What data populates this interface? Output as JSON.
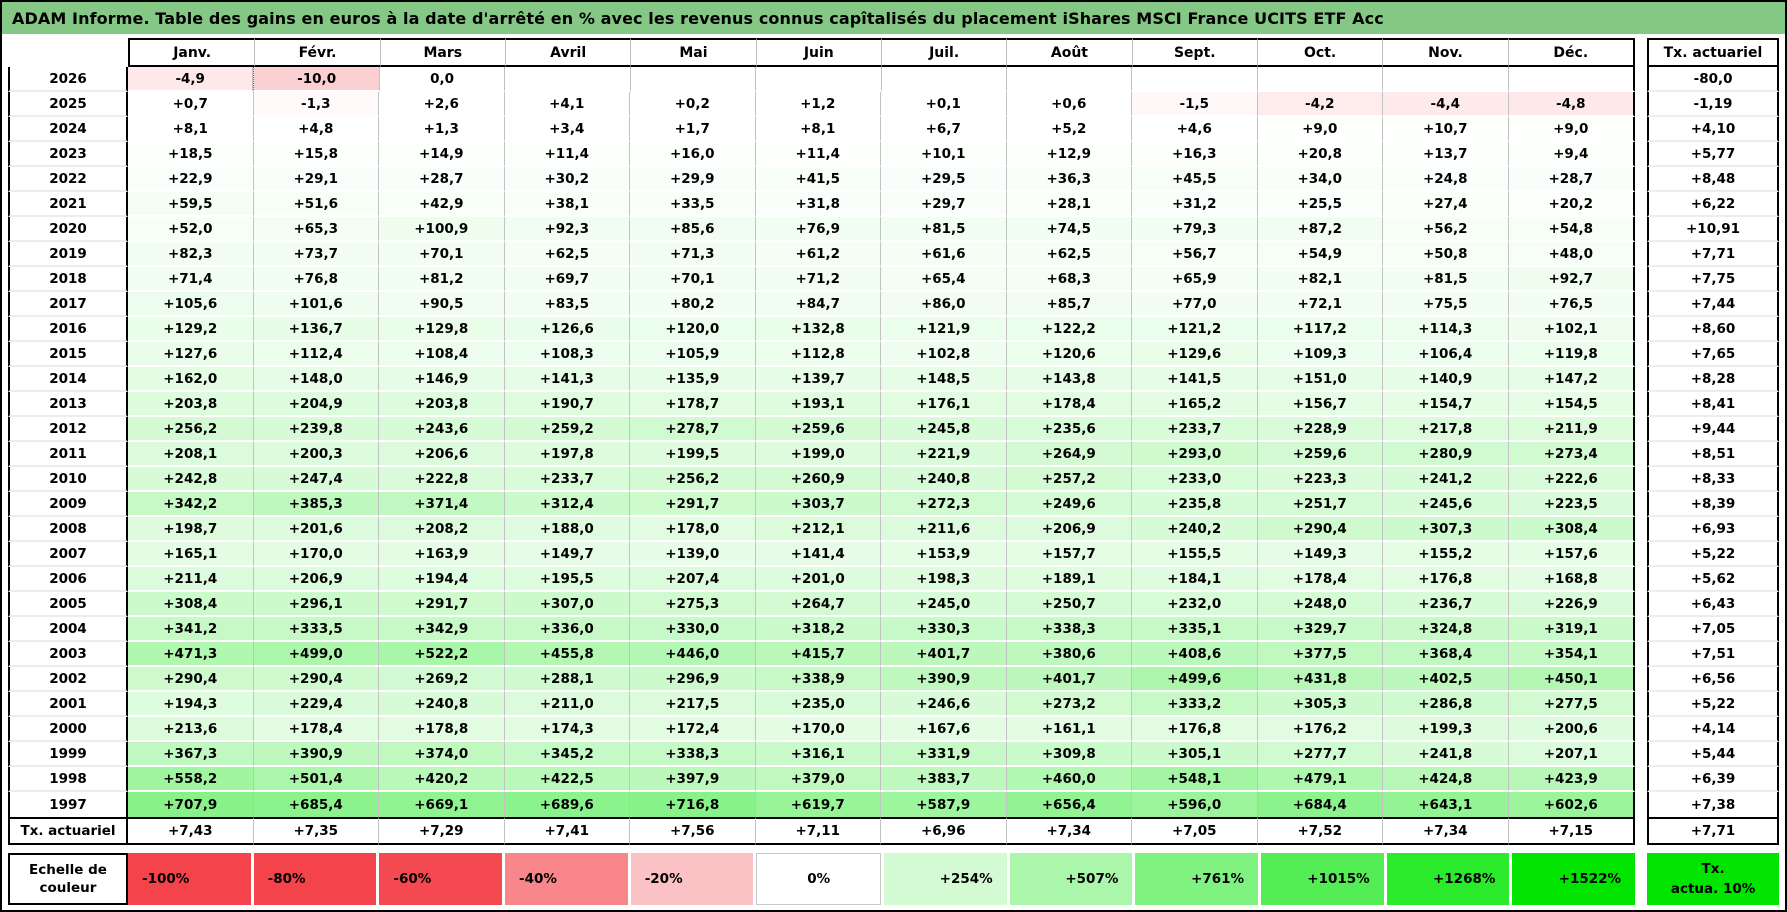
{
  "chart_data": {
    "type": "heatmap",
    "title": "ADAM Informe. Table des gains en euros à la date d'arrêté en % avec les revenus connus capîtalisés du placement iShares MSCI France UCITS ETF Acc",
    "columns": [
      "Janv.",
      "Févr.",
      "Mars",
      "Avril",
      "Mai",
      "Juin",
      "Juil.",
      "Août",
      "Sept.",
      "Oct.",
      "Nov.",
      "Déc."
    ],
    "rows": [
      "2026",
      "2025",
      "2024",
      "2023",
      "2022",
      "2021",
      "2020",
      "2019",
      "2018",
      "2017",
      "2016",
      "2015",
      "2014",
      "2013",
      "2012",
      "2011",
      "2010",
      "2009",
      "2008",
      "2007",
      "2006",
      "2005",
      "2004",
      "2003",
      "2002",
      "2001",
      "2000",
      "1999",
      "1998",
      "1997"
    ],
    "cells": [
      [
        "-4,9",
        "-10,0",
        "0,0",
        "",
        "",
        "",
        "",
        "",
        "",
        "",
        "",
        ""
      ],
      [
        "+0,7",
        "-1,3",
        "+2,6",
        "+4,1",
        "+0,2",
        "+1,2",
        "+0,1",
        "+0,6",
        "-1,5",
        "-4,2",
        "-4,4",
        "-4,8"
      ],
      [
        "+8,1",
        "+4,8",
        "+1,3",
        "+3,4",
        "+1,7",
        "+8,1",
        "+6,7",
        "+5,2",
        "+4,6",
        "+9,0",
        "+10,7",
        "+9,0"
      ],
      [
        "+18,5",
        "+15,8",
        "+14,9",
        "+11,4",
        "+16,0",
        "+11,4",
        "+10,1",
        "+12,9",
        "+16,3",
        "+20,8",
        "+13,7",
        "+9,4"
      ],
      [
        "+22,9",
        "+29,1",
        "+28,7",
        "+30,2",
        "+29,9",
        "+41,5",
        "+29,5",
        "+36,3",
        "+45,5",
        "+34,0",
        "+24,8",
        "+28,7"
      ],
      [
        "+59,5",
        "+51,6",
        "+42,9",
        "+38,1",
        "+33,5",
        "+31,8",
        "+29,7",
        "+28,1",
        "+31,2",
        "+25,5",
        "+27,4",
        "+20,2"
      ],
      [
        "+52,0",
        "+65,3",
        "+100,9",
        "+92,3",
        "+85,6",
        "+76,9",
        "+81,5",
        "+74,5",
        "+79,3",
        "+87,2",
        "+56,2",
        "+54,8"
      ],
      [
        "+82,3",
        "+73,7",
        "+70,1",
        "+62,5",
        "+71,3",
        "+61,2",
        "+61,6",
        "+62,5",
        "+56,7",
        "+54,9",
        "+50,8",
        "+48,0"
      ],
      [
        "+71,4",
        "+76,8",
        "+81,2",
        "+69,7",
        "+70,1",
        "+71,2",
        "+65,4",
        "+68,3",
        "+65,9",
        "+82,1",
        "+81,5",
        "+92,7"
      ],
      [
        "+105,6",
        "+101,6",
        "+90,5",
        "+83,5",
        "+80,2",
        "+84,7",
        "+86,0",
        "+85,7",
        "+77,0",
        "+72,1",
        "+75,5",
        "+76,5"
      ],
      [
        "+129,2",
        "+136,7",
        "+129,8",
        "+126,6",
        "+120,0",
        "+132,8",
        "+121,9",
        "+122,2",
        "+121,2",
        "+117,2",
        "+114,3",
        "+102,1"
      ],
      [
        "+127,6",
        "+112,4",
        "+108,4",
        "+108,3",
        "+105,9",
        "+112,8",
        "+102,8",
        "+120,6",
        "+129,6",
        "+109,3",
        "+106,4",
        "+119,8"
      ],
      [
        "+162,0",
        "+148,0",
        "+146,9",
        "+141,3",
        "+135,9",
        "+139,7",
        "+148,5",
        "+143,8",
        "+141,5",
        "+151,0",
        "+140,9",
        "+147,2"
      ],
      [
        "+203,8",
        "+204,9",
        "+203,8",
        "+190,7",
        "+178,7",
        "+193,1",
        "+176,1",
        "+178,4",
        "+165,2",
        "+156,7",
        "+154,7",
        "+154,5"
      ],
      [
        "+256,2",
        "+239,8",
        "+243,6",
        "+259,2",
        "+278,7",
        "+259,6",
        "+245,8",
        "+235,6",
        "+233,7",
        "+228,9",
        "+217,8",
        "+211,9"
      ],
      [
        "+208,1",
        "+200,3",
        "+206,6",
        "+197,8",
        "+199,5",
        "+199,0",
        "+221,9",
        "+264,9",
        "+293,0",
        "+259,6",
        "+280,9",
        "+273,4"
      ],
      [
        "+242,8",
        "+247,4",
        "+222,8",
        "+233,7",
        "+256,2",
        "+260,9",
        "+240,8",
        "+257,2",
        "+233,0",
        "+223,3",
        "+241,2",
        "+222,6"
      ],
      [
        "+342,2",
        "+385,3",
        "+371,4",
        "+312,4",
        "+291,7",
        "+303,7",
        "+272,3",
        "+249,6",
        "+235,8",
        "+251,7",
        "+245,6",
        "+223,5"
      ],
      [
        "+198,7",
        "+201,6",
        "+208,2",
        "+188,0",
        "+178,0",
        "+212,1",
        "+211,6",
        "+206,9",
        "+240,2",
        "+290,4",
        "+307,3",
        "+308,4"
      ],
      [
        "+165,1",
        "+170,0",
        "+163,9",
        "+149,7",
        "+139,0",
        "+141,4",
        "+153,9",
        "+157,7",
        "+155,5",
        "+149,3",
        "+155,2",
        "+157,6"
      ],
      [
        "+211,4",
        "+206,9",
        "+194,4",
        "+195,5",
        "+207,4",
        "+201,0",
        "+198,3",
        "+189,1",
        "+184,1",
        "+178,4",
        "+176,8",
        "+168,8"
      ],
      [
        "+308,4",
        "+296,1",
        "+291,7",
        "+307,0",
        "+275,3",
        "+264,7",
        "+245,0",
        "+250,7",
        "+232,0",
        "+248,0",
        "+236,7",
        "+226,9"
      ],
      [
        "+341,2",
        "+333,5",
        "+342,9",
        "+336,0",
        "+330,0",
        "+318,2",
        "+330,3",
        "+338,3",
        "+335,1",
        "+329,7",
        "+324,8",
        "+319,1"
      ],
      [
        "+471,3",
        "+499,0",
        "+522,2",
        "+455,8",
        "+446,0",
        "+415,7",
        "+401,7",
        "+380,6",
        "+408,6",
        "+377,5",
        "+368,4",
        "+354,1"
      ],
      [
        "+290,4",
        "+290,4",
        "+269,2",
        "+288,1",
        "+296,9",
        "+338,9",
        "+390,9",
        "+401,7",
        "+499,6",
        "+431,8",
        "+402,5",
        "+450,1"
      ],
      [
        "+194,3",
        "+229,4",
        "+240,8",
        "+211,0",
        "+217,5",
        "+235,0",
        "+246,6",
        "+273,2",
        "+333,2",
        "+305,3",
        "+286,8",
        "+277,5"
      ],
      [
        "+213,6",
        "+178,4",
        "+178,8",
        "+174,3",
        "+172,4",
        "+170,0",
        "+167,6",
        "+161,1",
        "+176,8",
        "+176,2",
        "+199,3",
        "+200,6"
      ],
      [
        "+367,3",
        "+390,9",
        "+374,0",
        "+345,2",
        "+338,3",
        "+316,1",
        "+331,9",
        "+309,8",
        "+305,1",
        "+277,7",
        "+241,8",
        "+207,1"
      ],
      [
        "+558,2",
        "+501,4",
        "+420,2",
        "+422,5",
        "+397,9",
        "+379,0",
        "+383,7",
        "+460,0",
        "+548,1",
        "+479,1",
        "+424,8",
        "+423,9"
      ],
      [
        "+707,9",
        "+685,4",
        "+669,1",
        "+689,6",
        "+716,8",
        "+619,7",
        "+587,9",
        "+656,4",
        "+596,0",
        "+684,4",
        "+643,1",
        "+602,6"
      ]
    ],
    "tx_column": {
      "header": "Tx. actuariel",
      "values": [
        "-80,0",
        "-1,19",
        "+4,10",
        "+5,77",
        "+8,48",
        "+6,22",
        "+10,91",
        "+7,71",
        "+7,75",
        "+7,44",
        "+8,60",
        "+7,65",
        "+8,28",
        "+8,41",
        "+9,44",
        "+8,51",
        "+8,33",
        "+8,39",
        "+6,93",
        "+5,22",
        "+5,62",
        "+6,43",
        "+7,05",
        "+7,51",
        "+6,56",
        "+5,22",
        "+4,14",
        "+5,44",
        "+6,39",
        "+7,38"
      ]
    },
    "tx_actuariel_row": {
      "label": "Tx. actuariel",
      "values": [
        "+7,43",
        "+7,35",
        "+7,29",
        "+7,41",
        "+7,56",
        "+7,11",
        "+6,96",
        "+7,34",
        "+7,05",
        "+7,52",
        "+7,34",
        "+7,15"
      ],
      "overall": "+7,71"
    },
    "color_scale": {
      "label": "Echelle de couleur",
      "stops": [
        "-100%",
        "-80%",
        "-60%",
        "-40%",
        "-20%",
        "0%",
        "+254%",
        "+507%",
        "+761%",
        "+1015%",
        "+1268%",
        "+1522%"
      ],
      "note_line1": "Tx.",
      "note_line2": "actua. 10%"
    }
  },
  "colors": {
    "title_bg": "#85C785",
    "negative_full": "#F4434B",
    "positive_full": "#00E400",
    "neutral": "#FFFFFF",
    "grid_line": "#C2C2C2",
    "tx_note_bg": "#00E400"
  }
}
